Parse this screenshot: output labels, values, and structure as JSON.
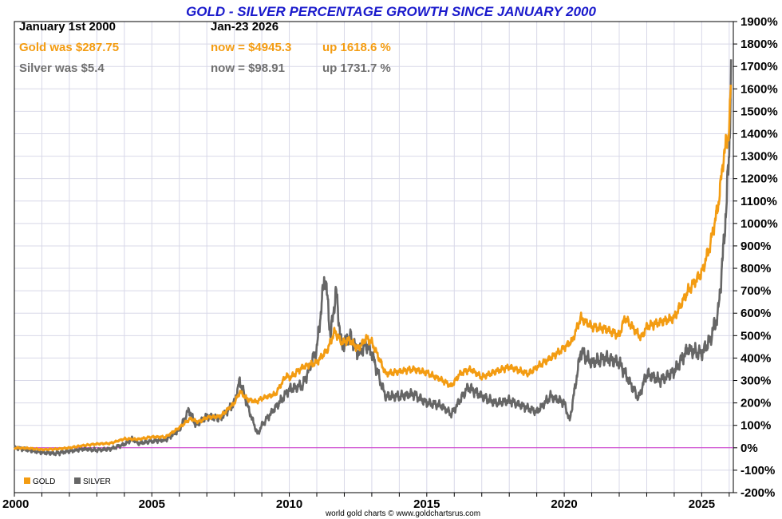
{
  "chart_data": {
    "type": "line",
    "title": "GOLD - SILVER PERCENTAGE GROWTH SINCE JANUARY 2000",
    "xlabel": "",
    "ylabel": "",
    "xlim": [
      2000,
      2026.15
    ],
    "ylim": [
      -200,
      1900
    ],
    "x_ticks": [
      "2000",
      "2005",
      "2010",
      "2015",
      "2020",
      "2025"
    ],
    "y_ticks": [
      "1900%",
      "1800%",
      "1700%",
      "1600%",
      "1500%",
      "1400%",
      "1300%",
      "1200%",
      "1100%",
      "1000%",
      "900%",
      "800%",
      "700%",
      "600%",
      "500%",
      "400%",
      "300%",
      "200%",
      "100%",
      "0%",
      "-100%",
      "-200%"
    ],
    "header": {
      "start_label": "January 1st 2000",
      "end_label": "Jan-23  2026",
      "gold_start": "Gold was $287.75",
      "gold_now": "now = $4945.3",
      "gold_up": "up 1618.6 %",
      "silver_start": "Silver was $5.4",
      "silver_now": "now = $98.91",
      "silver_up": "up 1731.7 %"
    },
    "credit": "world gold charts © www.goldchartsrus.com",
    "legend_position": "bottom-left",
    "grid": true,
    "series": [
      {
        "name": "GOLD",
        "color": "#f39c12",
        "x": [
          2000.0,
          2000.5,
          2001.0,
          2001.5,
          2002.0,
          2002.5,
          2003.0,
          2003.5,
          2004.0,
          2004.5,
          2005.0,
          2005.5,
          2006.0,
          2006.4,
          2006.7,
          2007.0,
          2007.5,
          2008.0,
          2008.2,
          2008.5,
          2008.8,
          2009.0,
          2009.5,
          2009.9,
          2010.0,
          2010.5,
          2011.0,
          2011.4,
          2011.65,
          2011.9,
          2012.2,
          2012.5,
          2012.8,
          2013.0,
          2013.3,
          2013.5,
          2014.0,
          2014.5,
          2015.0,
          2015.5,
          2015.9,
          2016.2,
          2016.6,
          2017.0,
          2017.5,
          2018.0,
          2018.7,
          2019.0,
          2019.5,
          2020.0,
          2020.3,
          2020.6,
          2021.0,
          2021.5,
          2022.0,
          2022.2,
          2022.8,
          2023.0,
          2023.5,
          2024.0,
          2024.5,
          2025.0,
          2025.3,
          2025.6,
          2025.8,
          2026.0,
          2026.06
        ],
        "values": [
          0,
          -2,
          -8,
          -6,
          0,
          10,
          17,
          20,
          40,
          38,
          48,
          48,
          90,
          130,
          115,
          135,
          140,
          200,
          250,
          215,
          205,
          220,
          240,
          325,
          310,
          360,
          380,
          440,
          520,
          470,
          480,
          440,
          490,
          470,
          390,
          330,
          340,
          350,
          335,
          305,
          275,
          330,
          350,
          315,
          340,
          360,
          330,
          360,
          400,
          445,
          480,
          580,
          540,
          530,
          500,
          580,
          490,
          540,
          560,
          580,
          700,
          780,
          900,
          1080,
          1300,
          1420,
          1618.6
        ]
      },
      {
        "name": "SILVER",
        "color": "#666666",
        "x": [
          2000.0,
          2000.5,
          2001.0,
          2001.5,
          2002.0,
          2002.5,
          2003.0,
          2003.5,
          2004.0,
          2004.3,
          2004.5,
          2005.0,
          2005.5,
          2006.0,
          2006.35,
          2006.6,
          2007.0,
          2007.5,
          2008.0,
          2008.2,
          2008.5,
          2008.85,
          2009.0,
          2009.5,
          2010.0,
          2010.5,
          2011.0,
          2011.3,
          2011.5,
          2011.7,
          2011.9,
          2012.2,
          2012.5,
          2012.8,
          2013.0,
          2013.3,
          2013.5,
          2014.0,
          2014.5,
          2015.0,
          2015.5,
          2015.9,
          2016.5,
          2017.0,
          2017.5,
          2018.0,
          2018.8,
          2019.0,
          2019.5,
          2020.0,
          2020.2,
          2020.6,
          2021.0,
          2021.5,
          2022.0,
          2022.7,
          2023.0,
          2023.5,
          2024.0,
          2024.5,
          2025.0,
          2025.3,
          2025.6,
          2025.8,
          2026.0,
          2026.07
        ],
        "values": [
          0,
          -10,
          -20,
          -25,
          -15,
          -5,
          -10,
          -5,
          15,
          40,
          20,
          30,
          35,
          80,
          170,
          100,
          140,
          130,
          200,
          300,
          180,
          60,
          100,
          180,
          260,
          280,
          440,
          780,
          500,
          700,
          450,
          500,
          420,
          460,
          420,
          300,
          230,
          230,
          240,
          200,
          190,
          150,
          270,
          230,
          200,
          210,
          170,
          160,
          230,
          200,
          120,
          430,
          380,
          400,
          380,
          220,
          330,
          300,
          340,
          440,
          420,
          480,
          600,
          900,
          1300,
          1731.7
        ]
      }
    ]
  }
}
